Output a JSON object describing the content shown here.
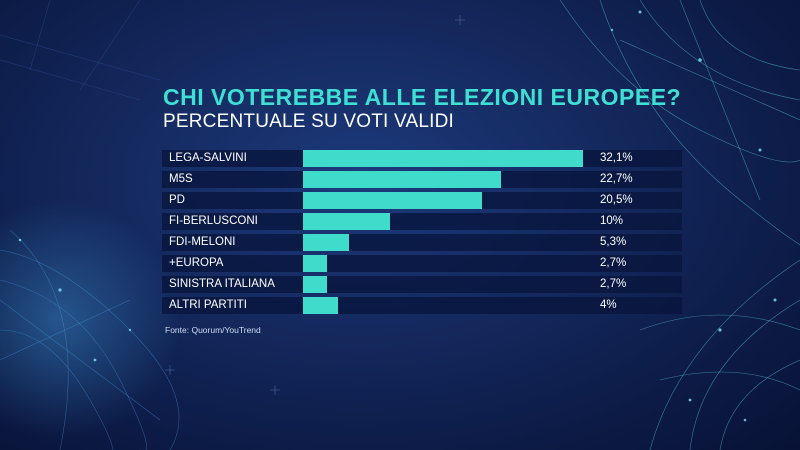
{
  "colors": {
    "bar": "#3fdccc",
    "title": "#3ee0d4",
    "text": "#ffffff"
  },
  "header": {
    "title": "CHI VOTEREBBE ALLE ELEZIONI EUROPEE?",
    "subtitle": "PERCENTUALE SU VOTI VALIDI"
  },
  "source": "Fonte: Quorum/YouTrend",
  "chart_data": {
    "type": "bar",
    "orientation": "horizontal",
    "title": "CHI VOTEREBBE ALLE ELEZIONI EUROPEE?",
    "subtitle": "PERCENTUALE SU VOTI VALIDI",
    "categories": [
      "LEGA-SALVINI",
      "M5S",
      "PD",
      "FI-BERLUSCONI",
      "FDI-MELONI",
      "+EUROPA",
      "SINISTRA ITALIANA",
      "ALTRI PARTITI"
    ],
    "values": [
      32.1,
      22.7,
      20.5,
      10,
      5.3,
      2.7,
      2.7,
      4
    ],
    "value_labels": [
      "32,1%",
      "22,7%",
      "20,5%",
      "10%",
      "5,3%",
      "2,7%",
      "2,7%",
      "4%"
    ],
    "xlim": [
      0,
      32.1
    ],
    "grid": false,
    "legend": "none"
  }
}
